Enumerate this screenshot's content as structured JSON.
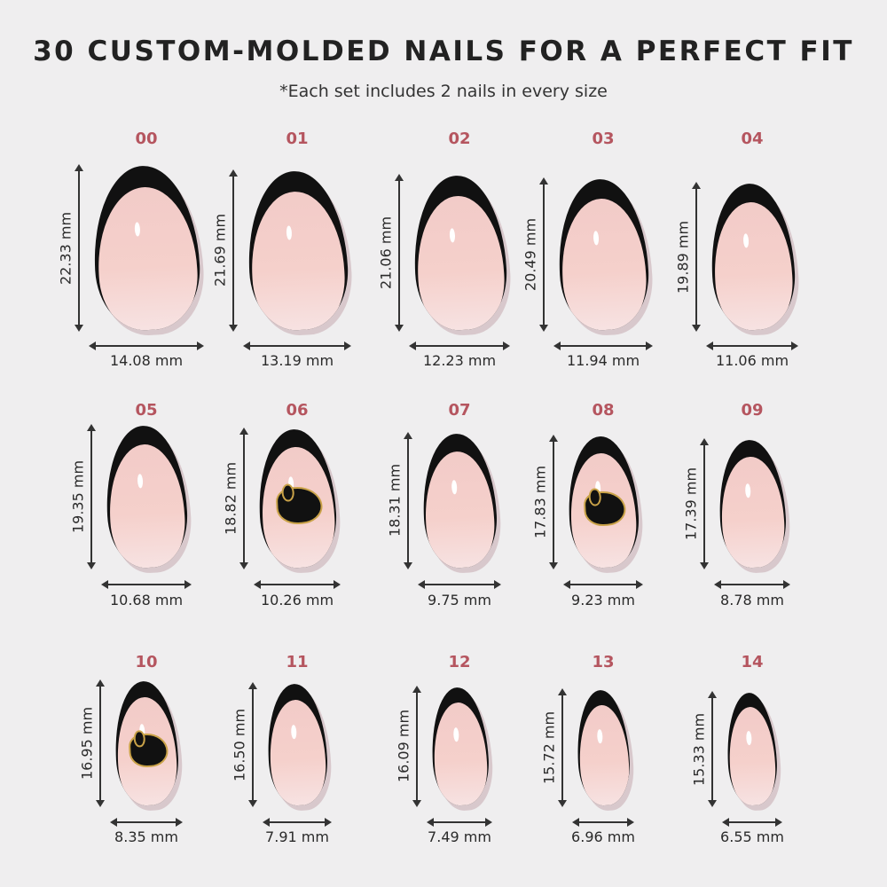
{
  "header": {
    "title": "30 CUSTOM-MOLDED NAILS FOR A PERFECT FIT",
    "subtitle": "*Each set includes 2 nails in every size"
  },
  "colors": {
    "size_label": "#b5555f",
    "tip": "#111111",
    "nail_base": "#f4cfcb",
    "charm_outline": "#c9a248",
    "background": "#efeeef"
  },
  "nails": [
    {
      "size": "00",
      "length": "22.33 mm",
      "width": "14.08 mm",
      "charm": false
    },
    {
      "size": "01",
      "length": "21.69 mm",
      "width": "13.19 mm",
      "charm": false
    },
    {
      "size": "02",
      "length": "21.06 mm",
      "width": "12.23 mm",
      "charm": false
    },
    {
      "size": "03",
      "length": "20.49 mm",
      "width": "11.94 mm",
      "charm": false
    },
    {
      "size": "04",
      "length": "19.89 mm",
      "width": "11.06 mm",
      "charm": false
    },
    {
      "size": "05",
      "length": "19.35 mm",
      "width": "10.68 mm",
      "charm": false
    },
    {
      "size": "06",
      "length": "18.82 mm",
      "width": "10.26 mm",
      "charm": true
    },
    {
      "size": "07",
      "length": "18.31 mm",
      "width": "9.75 mm",
      "charm": false
    },
    {
      "size": "08",
      "length": "17.83 mm",
      "width": "9.23 mm",
      "charm": true
    },
    {
      "size": "09",
      "length": "17.39 mm",
      "width": "8.78 mm",
      "charm": false
    },
    {
      "size": "10",
      "length": "16.95 mm",
      "width": "8.35 mm",
      "charm": true
    },
    {
      "size": "11",
      "length": "16.50 mm",
      "width": "7.91 mm",
      "charm": false
    },
    {
      "size": "12",
      "length": "16.09 mm",
      "width": "7.49 mm",
      "charm": false
    },
    {
      "size": "13",
      "length": "15.72 mm",
      "width": "6.96 mm",
      "charm": false
    },
    {
      "size": "14",
      "length": "15.33 mm",
      "width": "6.55 mm",
      "charm": false
    }
  ]
}
